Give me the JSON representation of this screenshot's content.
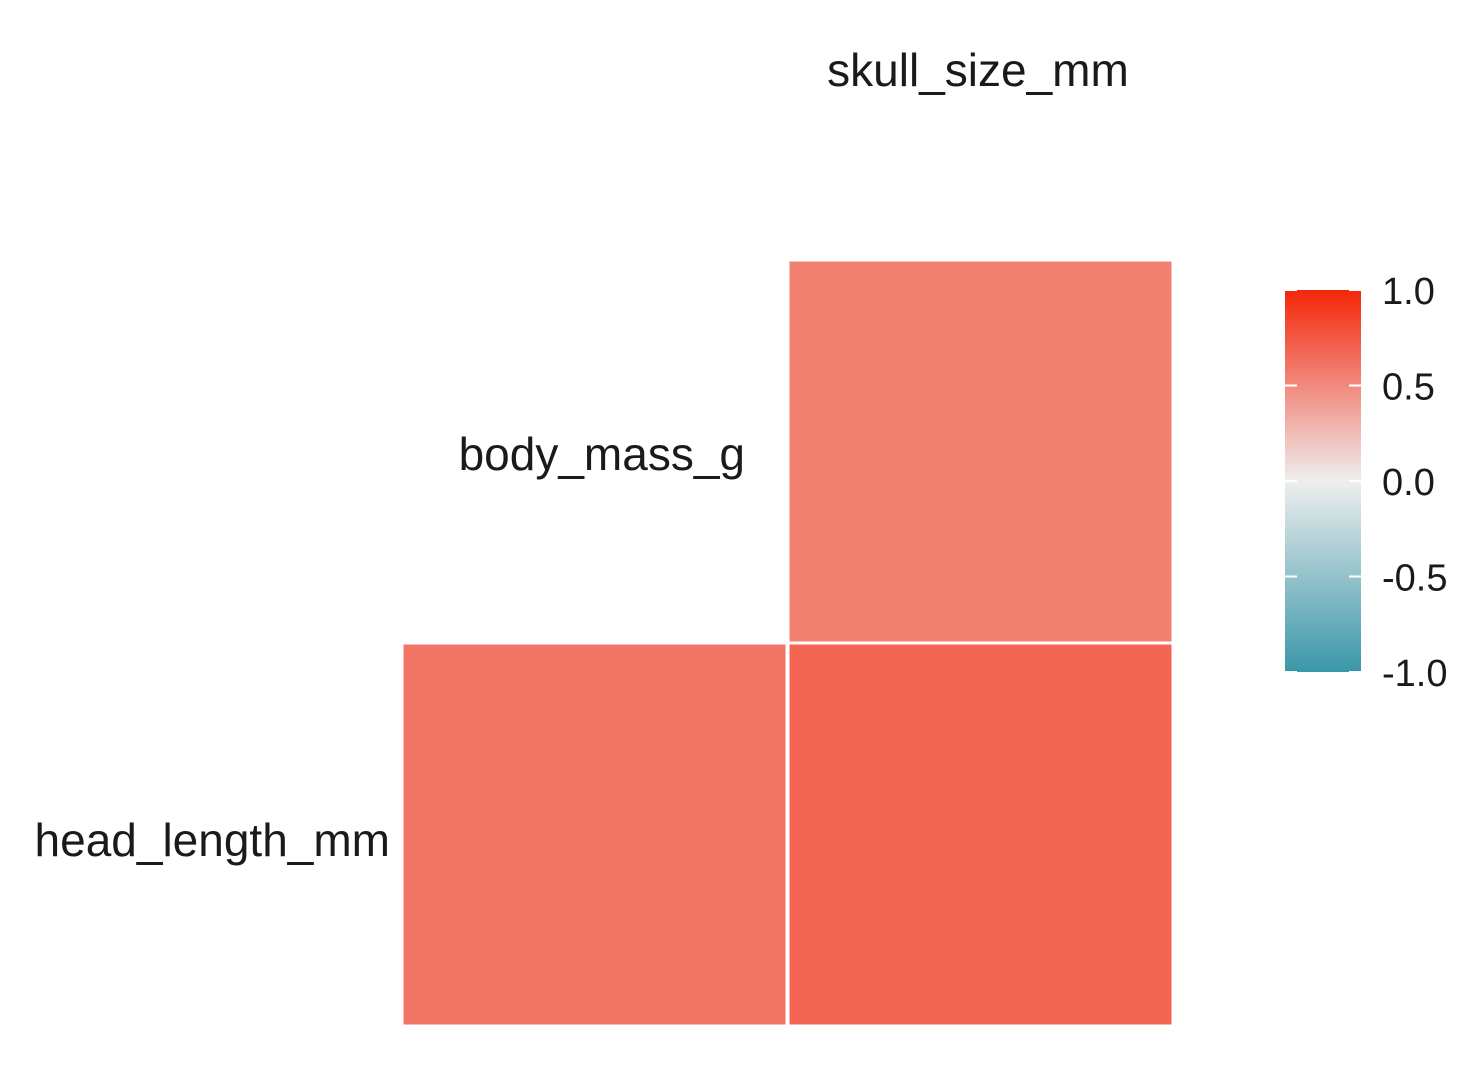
{
  "chart_data": {
    "type": "heatmap",
    "title": "",
    "variables": [
      "head_length_mm",
      "body_mass_g",
      "skull_size_mm"
    ],
    "top_label": "skull_size_mm",
    "cells": [
      {
        "row": "body_mass_g",
        "col": "skull_size_mm",
        "value": 0.55
      },
      {
        "row": "head_length_mm",
        "col": "body_mass_g",
        "value": 0.6
      },
      {
        "row": "head_length_mm",
        "col": "skull_size_mm",
        "value": 0.68
      }
    ],
    "legend": {
      "position": "right",
      "range": [
        -1,
        1
      ],
      "ticks": [
        "1.0",
        "0.5",
        "0.0",
        "-0.5",
        "-1.0"
      ],
      "colors": {
        "low": "#3a97a8",
        "mid": "#eeeeee",
        "high": "#f4260a"
      }
    }
  }
}
